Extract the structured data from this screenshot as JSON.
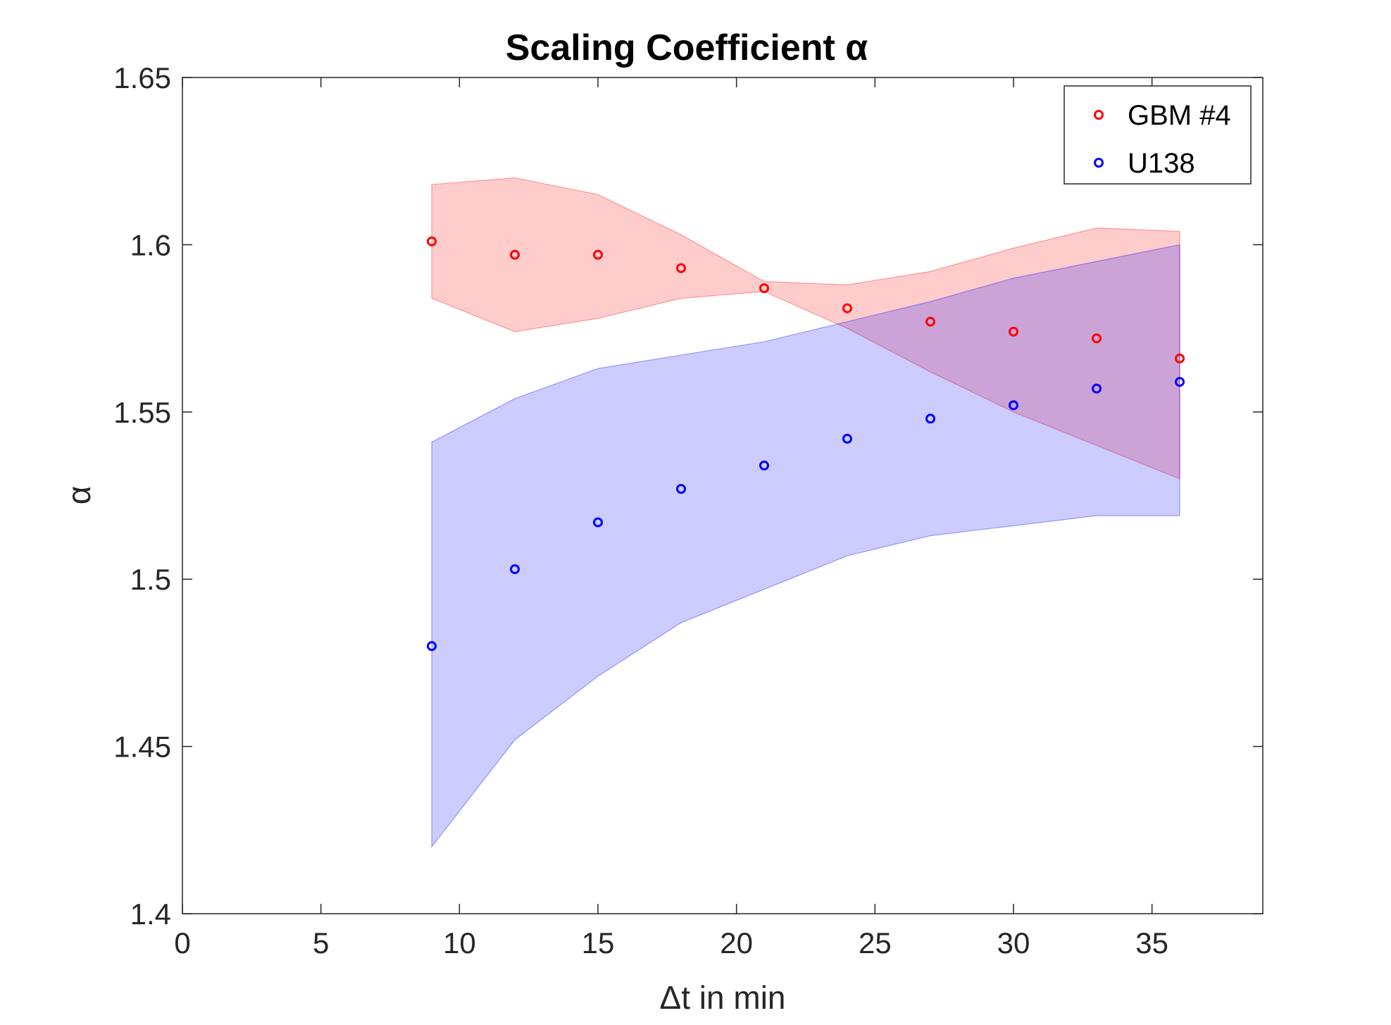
{
  "chart_data": {
    "type": "scatter",
    "title": "Scaling Coefficient α",
    "xlabel": "Δt in min",
    "ylabel": "α",
    "xlim": [
      0,
      39
    ],
    "ylim": [
      1.4,
      1.65
    ],
    "xticks": [
      0,
      5,
      10,
      15,
      20,
      25,
      30,
      35
    ],
    "yticks": [
      1.4,
      1.45,
      1.5,
      1.55,
      1.6,
      1.65
    ],
    "xtick_labels": [
      "0",
      "5",
      "10",
      "15",
      "20",
      "25",
      "30",
      "35"
    ],
    "ytick_labels": [
      "1.4",
      "1.45",
      "1.5",
      "1.55",
      "1.6",
      "1.65"
    ],
    "grid": false,
    "legend_position": "top-right",
    "series": [
      {
        "name": "GBM #4",
        "color": "#ff0000",
        "marker": "circle",
        "x": [
          9,
          12,
          15,
          18,
          21,
          24,
          27,
          30,
          33,
          36
        ],
        "y": [
          1.601,
          1.597,
          1.597,
          1.593,
          1.587,
          1.581,
          1.577,
          1.574,
          1.572,
          1.566
        ],
        "band_upper": [
          1.618,
          1.62,
          1.615,
          1.603,
          1.589,
          1.588,
          1.592,
          1.599,
          1.605,
          1.604
        ],
        "band_lower": [
          1.584,
          1.574,
          1.578,
          1.584,
          1.586,
          1.575,
          1.562,
          1.55,
          1.54,
          1.53
        ],
        "band_color": "#ff0000",
        "band_opacity": 0.2
      },
      {
        "name": "U138",
        "color": "#0000ff",
        "marker": "circle",
        "x": [
          9,
          12,
          15,
          18,
          21,
          24,
          27,
          30,
          33,
          36
        ],
        "y": [
          1.48,
          1.503,
          1.517,
          1.527,
          1.534,
          1.542,
          1.548,
          1.552,
          1.557,
          1.559
        ],
        "band_upper": [
          1.541,
          1.554,
          1.563,
          1.567,
          1.571,
          1.577,
          1.583,
          1.59,
          1.595,
          1.6
        ],
        "band_lower": [
          1.42,
          1.452,
          1.471,
          1.487,
          1.497,
          1.507,
          1.513,
          1.516,
          1.519,
          1.519
        ],
        "band_color": "#0000ff",
        "band_opacity": 0.2
      }
    ]
  }
}
